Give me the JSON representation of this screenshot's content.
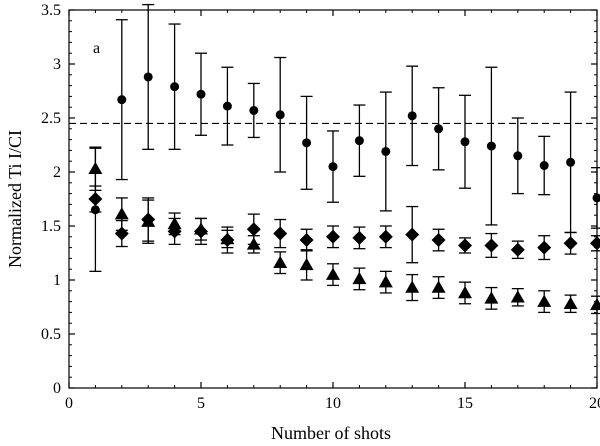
{
  "chart_data": {
    "type": "scatter",
    "panel_label": "a",
    "xlabel": "Number of shots",
    "ylabel": "Normalized Ti I/CI",
    "xlim": [
      0,
      20
    ],
    "ylim": [
      0,
      3.5
    ],
    "xticks": [
      0,
      5,
      10,
      15,
      20
    ],
    "yticks": [
      0,
      0.5,
      1,
      1.5,
      2,
      2.5,
      3,
      3.5
    ],
    "xtick_labels": [
      "0",
      "5",
      "10",
      "15",
      "20"
    ],
    "ytick_labels": [
      "0",
      "0.5",
      "1",
      "1.5",
      "2",
      "2.5",
      "3",
      "3.5"
    ],
    "reference_line": {
      "y": 2.45,
      "style": "dashed"
    },
    "grid": false,
    "series": [
      {
        "marker": "circle",
        "x": [
          1,
          2,
          3,
          4,
          5,
          6,
          7,
          8,
          9,
          10,
          11,
          12,
          13,
          14,
          15,
          16,
          17,
          18,
          19,
          20
        ],
        "y": [
          1.65,
          2.67,
          2.88,
          2.79,
          2.72,
          2.61,
          2.57,
          2.53,
          2.27,
          2.05,
          2.29,
          2.19,
          2.52,
          2.4,
          2.28,
          2.24,
          2.15,
          2.06,
          2.09,
          1.76
        ],
        "err": [
          0.57,
          0.74,
          0.67,
          0.58,
          0.38,
          0.36,
          0.25,
          0.53,
          0.43,
          0.33,
          0.33,
          0.55,
          0.46,
          0.38,
          0.43,
          0.73,
          0.35,
          0.27,
          0.65,
          0.28
        ]
      },
      {
        "marker": "diamond",
        "x": [
          1,
          2,
          3,
          4,
          5,
          6,
          7,
          8,
          9,
          10,
          11,
          12,
          13,
          14,
          15,
          16,
          17,
          18,
          19,
          20
        ],
        "y": [
          1.75,
          1.43,
          1.56,
          1.45,
          1.45,
          1.37,
          1.47,
          1.43,
          1.37,
          1.4,
          1.39,
          1.4,
          1.42,
          1.37,
          1.32,
          1.32,
          1.28,
          1.3,
          1.34,
          1.34
        ],
        "err": [
          0.12,
          0.12,
          0.2,
          0.12,
          0.12,
          0.12,
          0.14,
          0.13,
          0.1,
          0.1,
          0.1,
          0.1,
          0.26,
          0.1,
          0.07,
          0.11,
          0.08,
          0.11,
          0.1,
          0.07
        ]
      },
      {
        "marker": "triangle",
        "x": [
          1,
          2,
          3,
          4,
          5,
          6,
          7,
          8,
          9,
          10,
          11,
          12,
          13,
          14,
          15,
          16,
          17,
          18,
          19,
          20
        ],
        "y": [
          2.03,
          1.61,
          1.54,
          1.52,
          1.47,
          1.38,
          1.33,
          1.16,
          1.14,
          1.05,
          1.01,
          0.98,
          0.93,
          0.93,
          0.88,
          0.83,
          0.84,
          0.8,
          0.78,
          0.77
        ],
        "err": [
          0.2,
          0.15,
          0.2,
          0.1,
          0.1,
          0.08,
          0.08,
          0.1,
          0.14,
          0.1,
          0.1,
          0.1,
          0.12,
          0.1,
          0.1,
          0.1,
          0.08,
          0.1,
          0.08,
          0.08
        ]
      }
    ]
  }
}
